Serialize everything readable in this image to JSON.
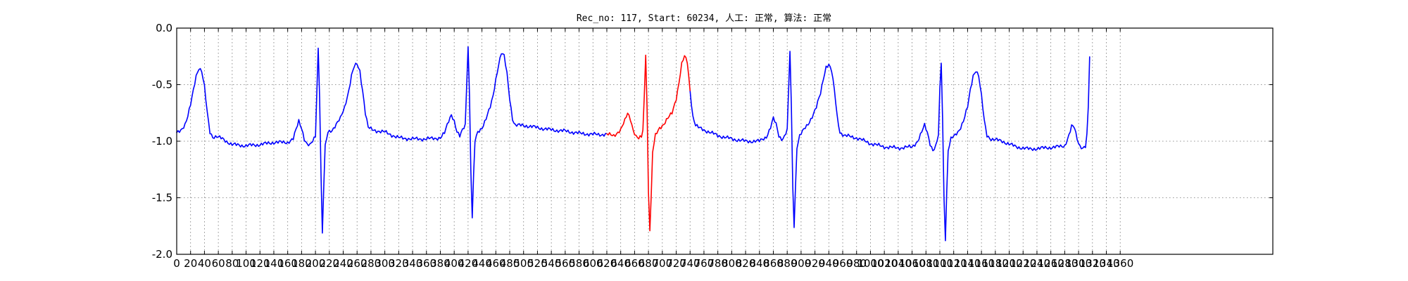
{
  "chart_data": {
    "type": "line",
    "title": "Rec_no: 117, Start: 60234, 人工: 正常, 算法: 正常",
    "xlabel": "",
    "ylabel": "",
    "xlim": [
      0,
      1580
    ],
    "ylim": [
      -2.0,
      0.0
    ],
    "grid": true,
    "x_tick_step": 20,
    "x_tick_max": 1360,
    "y_ticks": [
      0.0,
      -0.5,
      -1.0,
      -1.5,
      -2.0
    ],
    "y_tick_labels": [
      "0.0",
      "-0.5",
      "-1.0",
      "-1.5",
      "-2.0"
    ],
    "highlight_range": [
      620,
      740
    ],
    "colors": {
      "signal": "#0000ff",
      "highlight": "#ff0000",
      "grid": "#000000"
    },
    "series": [
      {
        "color": "#0000ff",
        "keypoints": [
          [
            0,
            -0.93
          ],
          [
            6,
            -0.9
          ],
          [
            12,
            -0.85
          ],
          [
            16,
            -0.78
          ],
          [
            20,
            -0.68
          ],
          [
            24,
            -0.55
          ],
          [
            28,
            -0.42
          ],
          [
            32,
            -0.35
          ],
          [
            36,
            -0.38
          ],
          [
            40,
            -0.52
          ],
          [
            44,
            -0.75
          ],
          [
            48,
            -0.92
          ],
          [
            52,
            -0.96
          ],
          [
            58,
            -0.96
          ],
          [
            66,
            -0.98
          ],
          [
            80,
            -1.03
          ],
          [
            100,
            -1.04
          ],
          [
            120,
            -1.03
          ],
          [
            140,
            -1.01
          ],
          [
            160,
            -1.01
          ],
          [
            168,
            -0.98
          ],
          [
            172,
            -0.9
          ],
          [
            176,
            -0.82
          ],
          [
            180,
            -0.88
          ],
          [
            184,
            -0.98
          ],
          [
            188,
            -1.03
          ],
          [
            192,
            -1.04
          ],
          [
            196,
            -1.0
          ],
          [
            200,
            -0.95
          ],
          [
            202,
            -0.55
          ],
          [
            204,
            -0.18
          ],
          [
            206,
            -0.6
          ],
          [
            208,
            -1.3
          ],
          [
            210,
            -1.82
          ],
          [
            212,
            -1.4
          ],
          [
            214,
            -1.05
          ],
          [
            218,
            -0.92
          ],
          [
            224,
            -0.9
          ],
          [
            230,
            -0.85
          ],
          [
            236,
            -0.8
          ],
          [
            242,
            -0.7
          ],
          [
            248,
            -0.55
          ],
          [
            252,
            -0.42
          ],
          [
            256,
            -0.34
          ],
          [
            260,
            -0.32
          ],
          [
            264,
            -0.38
          ],
          [
            268,
            -0.55
          ],
          [
            272,
            -0.75
          ],
          [
            276,
            -0.88
          ],
          [
            282,
            -0.9
          ],
          [
            300,
            -0.92
          ],
          [
            320,
            -0.97
          ],
          [
            340,
            -0.98
          ],
          [
            360,
            -0.98
          ],
          [
            380,
            -0.97
          ],
          [
            386,
            -0.93
          ],
          [
            392,
            -0.82
          ],
          [
            396,
            -0.76
          ],
          [
            400,
            -0.82
          ],
          [
            404,
            -0.92
          ],
          [
            408,
            -0.96
          ],
          [
            412,
            -0.9
          ],
          [
            416,
            -0.85
          ],
          [
            418,
            -0.5
          ],
          [
            420,
            -0.15
          ],
          [
            422,
            -0.6
          ],
          [
            424,
            -1.25
          ],
          [
            426,
            -1.68
          ],
          [
            428,
            -1.3
          ],
          [
            430,
            -1.0
          ],
          [
            434,
            -0.92
          ],
          [
            440,
            -0.88
          ],
          [
            446,
            -0.8
          ],
          [
            452,
            -0.7
          ],
          [
            456,
            -0.6
          ],
          [
            460,
            -0.45
          ],
          [
            464,
            -0.32
          ],
          [
            468,
            -0.22
          ],
          [
            472,
            -0.25
          ],
          [
            476,
            -0.4
          ],
          [
            480,
            -0.62
          ],
          [
            484,
            -0.8
          ],
          [
            488,
            -0.86
          ],
          [
            500,
            -0.86
          ],
          [
            520,
            -0.88
          ],
          [
            540,
            -0.9
          ],
          [
            560,
            -0.91
          ],
          [
            580,
            -0.93
          ],
          [
            600,
            -0.94
          ],
          [
            620,
            -0.94
          ],
          [
            630,
            -0.95
          ],
          [
            640,
            -0.9
          ],
          [
            646,
            -0.82
          ],
          [
            650,
            -0.75
          ],
          [
            654,
            -0.8
          ],
          [
            658,
            -0.9
          ],
          [
            662,
            -0.96
          ],
          [
            666,
            -0.98
          ],
          [
            670,
            -0.96
          ],
          [
            672,
            -0.9
          ],
          [
            674,
            -0.6
          ],
          [
            676,
            -0.22
          ],
          [
            678,
            -0.7
          ],
          [
            680,
            -1.45
          ],
          [
            682,
            -1.78
          ],
          [
            684,
            -1.5
          ],
          [
            686,
            -1.1
          ],
          [
            690,
            -0.95
          ],
          [
            696,
            -0.88
          ],
          [
            702,
            -0.85
          ],
          [
            708,
            -0.8
          ],
          [
            714,
            -0.75
          ],
          [
            720,
            -0.62
          ],
          [
            724,
            -0.48
          ],
          [
            728,
            -0.32
          ],
          [
            732,
            -0.25
          ],
          [
            736,
            -0.3
          ],
          [
            740,
            -0.55
          ],
          [
            744,
            -0.78
          ],
          [
            748,
            -0.86
          ],
          [
            752,
            -0.88
          ],
          [
            760,
            -0.9
          ],
          [
            780,
            -0.95
          ],
          [
            800,
            -0.98
          ],
          [
            820,
            -1.0
          ],
          [
            840,
            -1.0
          ],
          [
            850,
            -0.96
          ],
          [
            856,
            -0.88
          ],
          [
            860,
            -0.8
          ],
          [
            864,
            -0.85
          ],
          [
            868,
            -0.95
          ],
          [
            872,
            -0.98
          ],
          [
            876,
            -0.96
          ],
          [
            880,
            -0.9
          ],
          [
            882,
            -0.55
          ],
          [
            884,
            -0.2
          ],
          [
            886,
            -0.7
          ],
          [
            888,
            -1.4
          ],
          [
            890,
            -1.75
          ],
          [
            892,
            -1.4
          ],
          [
            894,
            -1.05
          ],
          [
            898,
            -0.95
          ],
          [
            904,
            -0.9
          ],
          [
            910,
            -0.85
          ],
          [
            916,
            -0.78
          ],
          [
            922,
            -0.7
          ],
          [
            928,
            -0.58
          ],
          [
            932,
            -0.45
          ],
          [
            936,
            -0.34
          ],
          [
            940,
            -0.32
          ],
          [
            944,
            -0.38
          ],
          [
            948,
            -0.55
          ],
          [
            952,
            -0.78
          ],
          [
            956,
            -0.92
          ],
          [
            962,
            -0.95
          ],
          [
            980,
            -0.97
          ],
          [
            1000,
            -1.02
          ],
          [
            1020,
            -1.05
          ],
          [
            1040,
            -1.06
          ],
          [
            1060,
            -1.05
          ],
          [
            1068,
            -1.0
          ],
          [
            1074,
            -0.92
          ],
          [
            1078,
            -0.86
          ],
          [
            1082,
            -0.92
          ],
          [
            1086,
            -1.02
          ],
          [
            1090,
            -1.08
          ],
          [
            1094,
            -1.05
          ],
          [
            1098,
            -0.95
          ],
          [
            1100,
            -0.55
          ],
          [
            1102,
            -0.3
          ],
          [
            1104,
            -0.8
          ],
          [
            1106,
            -1.5
          ],
          [
            1108,
            -1.86
          ],
          [
            1110,
            -1.45
          ],
          [
            1112,
            -1.08
          ],
          [
            1116,
            -0.98
          ],
          [
            1122,
            -0.95
          ],
          [
            1128,
            -0.9
          ],
          [
            1134,
            -0.82
          ],
          [
            1140,
            -0.7
          ],
          [
            1144,
            -0.55
          ],
          [
            1148,
            -0.42
          ],
          [
            1152,
            -0.37
          ],
          [
            1156,
            -0.42
          ],
          [
            1160,
            -0.6
          ],
          [
            1164,
            -0.82
          ],
          [
            1168,
            -0.95
          ],
          [
            1174,
            -0.98
          ],
          [
            1190,
            -1.0
          ],
          [
            1210,
            -1.05
          ],
          [
            1230,
            -1.07
          ],
          [
            1250,
            -1.06
          ],
          [
            1270,
            -1.05
          ],
          [
            1280,
            -1.04
          ],
          [
            1286,
            -0.95
          ],
          [
            1290,
            -0.87
          ],
          [
            1294,
            -0.88
          ],
          [
            1298,
            -0.98
          ],
          [
            1302,
            -1.04
          ],
          [
            1306,
            -1.06
          ],
          [
            1310,
            -1.05
          ],
          [
            1312,
            -0.95
          ],
          [
            1314,
            -0.7
          ],
          [
            1316,
            -0.25
          ]
        ]
      }
    ]
  }
}
